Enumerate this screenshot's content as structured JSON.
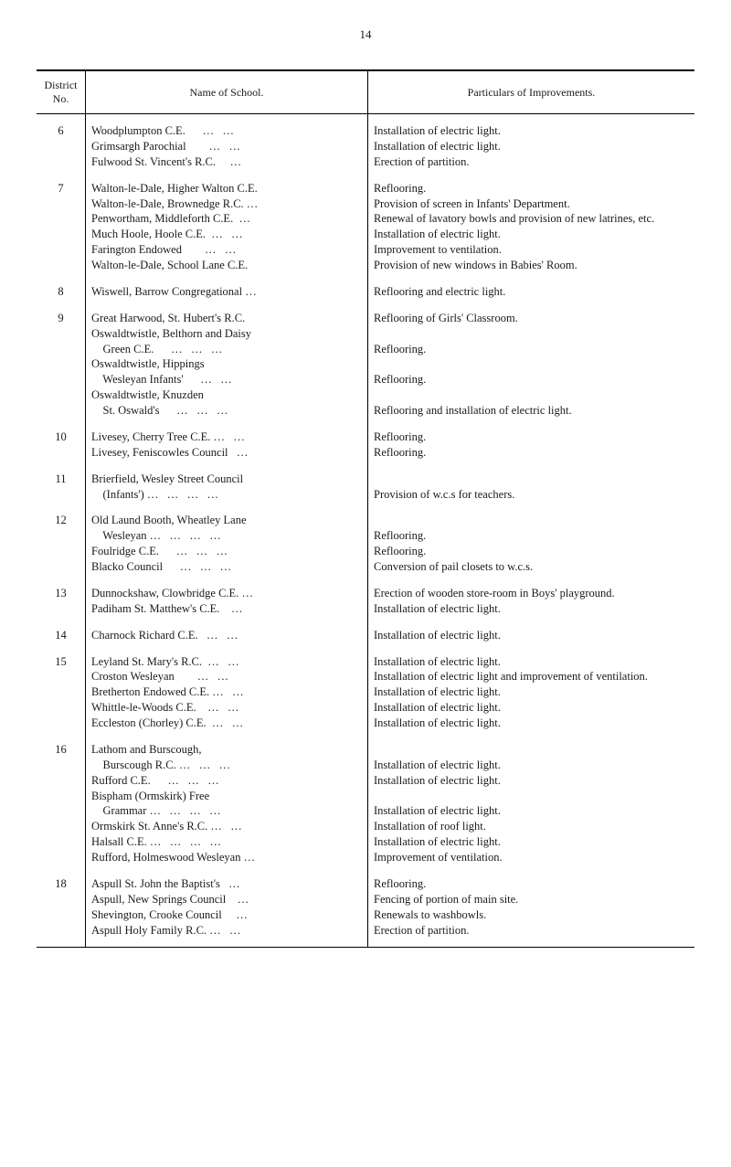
{
  "page_number": "14",
  "headers": {
    "col1": "District\nNo.",
    "col2": "Name of School.",
    "col3": "Particulars of Improvements."
  },
  "rows": [
    {
      "no": "6",
      "items": [
        {
          "school": "Woodplumpton C.E.      …   …",
          "improvement": "Installation of electric light."
        },
        {
          "school": "Grimsargh Parochial        …   …",
          "improvement": "Installation of electric light."
        },
        {
          "school": "Fulwood St. Vincent's R.C.     …",
          "improvement": "Erection of partition."
        }
      ]
    },
    {
      "no": "7",
      "items": [
        {
          "school": "Walton-le-Dale, Higher Walton C.E.",
          "improvement": "Reflooring."
        },
        {
          "school": "Walton-le-Dale, Brownedge R.C. …",
          "improvement": "Provision of screen in Infants' Department."
        },
        {
          "school": "Penwortham, Middleforth C.E.  …",
          "improvement": "Renewal of lavatory bowls and provision of new latrines, etc."
        },
        {
          "school": "Much Hoole, Hoole C.E.  …   …",
          "improvement": "Installation of electric light."
        },
        {
          "school": "Farington Endowed        …   …",
          "improvement": "Improvement to ventilation."
        },
        {
          "school": "Walton-le-Dale, School Lane C.E.",
          "improvement": "Provision of new windows in Babies' Room."
        }
      ]
    },
    {
      "no": "8",
      "items": [
        {
          "school": "Wiswell, Barrow Congregational …",
          "improvement": "Reflooring and electric light."
        }
      ]
    },
    {
      "no": "9",
      "items": [
        {
          "school": "Great Harwood, St. Hubert's R.C.",
          "improvement": "Reflooring of Girls' Classroom."
        },
        {
          "school": "Oswaldtwistle, Belthorn and Daisy",
          "improvement": ""
        },
        {
          "school": "    Green C.E.      …   …   …",
          "improvement": "Reflooring."
        },
        {
          "school": "Oswaldtwistle, Hippings",
          "improvement": ""
        },
        {
          "school": "    Wesleyan Infants'      …   …",
          "improvement": "Reflooring."
        },
        {
          "school": "Oswaldtwistle, Knuzden",
          "improvement": ""
        },
        {
          "school": "    St. Oswald's      …   …   …",
          "improvement": "Reflooring and installation of electric light."
        }
      ]
    },
    {
      "no": "10",
      "items": [
        {
          "school": "Livesey, Cherry Tree C.E. …   …",
          "improvement": "Reflooring."
        },
        {
          "school": "Livesey, Feniscowles Council   …",
          "improvement": "Reflooring."
        }
      ]
    },
    {
      "no": "11",
      "items": [
        {
          "school": "Brierfield, Wesley Street Council",
          "improvement": ""
        },
        {
          "school": "    (Infants') …   …   …   …",
          "improvement": "Provision of w.c.s for teachers."
        }
      ]
    },
    {
      "no": "12",
      "items": [
        {
          "school": "Old Laund Booth, Wheatley Lane",
          "improvement": ""
        },
        {
          "school": "    Wesleyan …   …   …   …",
          "improvement": "Reflooring."
        },
        {
          "school": "Foulridge C.E.      …   …   …",
          "improvement": "Reflooring."
        },
        {
          "school": "Blacko Council      …   …   …",
          "improvement": "Conversion of pail closets to w.c.s."
        }
      ]
    },
    {
      "no": "13",
      "items": [
        {
          "school": "Dunnockshaw, Clowbridge C.E. …",
          "improvement": "Erection of wooden store-room in Boys' playground."
        },
        {
          "school": "Padiham St. Matthew's C.E.    …",
          "improvement": "Installation of electric light."
        }
      ]
    },
    {
      "no": "14",
      "items": [
        {
          "school": "Charnock Richard C.E.   …   …",
          "improvement": "Installation of electric light."
        }
      ]
    },
    {
      "no": "15",
      "items": [
        {
          "school": "Leyland St. Mary's R.C.  …   …",
          "improvement": "Installation of electric light."
        },
        {
          "school": "Croston Wesleyan        …   …",
          "improvement": "Installation of electric light and improvement of ventilation."
        },
        {
          "school": "Bretherton Endowed C.E. …   …",
          "improvement": "Installation of electric light."
        },
        {
          "school": "Whittle-le-Woods C.E.    …   …",
          "improvement": "Installation of electric light."
        },
        {
          "school": "Eccleston (Chorley) C.E.  …   …",
          "improvement": "Installation of electric light."
        }
      ]
    },
    {
      "no": "16",
      "items": [
        {
          "school": "Lathom and Burscough,",
          "improvement": ""
        },
        {
          "school": "    Burscough R.C. …   …   …",
          "improvement": "Installation of electric light."
        },
        {
          "school": "Rufford C.E.      …   …   …",
          "improvement": "Installation of electric light."
        },
        {
          "school": "Bispham (Ormskirk) Free",
          "improvement": ""
        },
        {
          "school": "    Grammar …   …   …   …",
          "improvement": "Installation of electric light."
        },
        {
          "school": "Ormskirk St. Anne's R.C. …   …",
          "improvement": "Installation of roof light."
        },
        {
          "school": "Halsall C.E. …   …   …   …",
          "improvement": "Installation of electric light."
        },
        {
          "school": "Rufford, Holmeswood Wesleyan …",
          "improvement": "Improvement of ventilation."
        }
      ]
    },
    {
      "no": "18",
      "items": [
        {
          "school": "Aspull St. John the Baptist's   …",
          "improvement": "Reflooring."
        },
        {
          "school": "Aspull, New Springs Council    …",
          "improvement": "Fencing of portion of main site."
        },
        {
          "school": "Shevington, Crooke Council     …",
          "improvement": "Renewals to washbowls."
        },
        {
          "school": "Aspull Holy Family R.C. …   …",
          "improvement": "Erection of partition."
        }
      ]
    }
  ]
}
